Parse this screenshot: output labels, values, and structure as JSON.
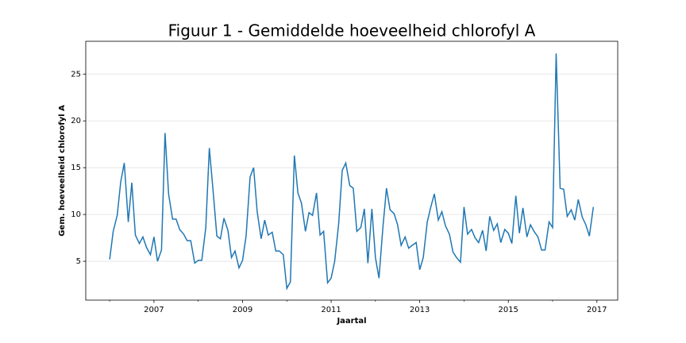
{
  "chart_data": {
    "type": "line",
    "title": "Figuur 1 - Gemiddelde hoeveelheid chlorofyl A",
    "xlabel": "Jaartal",
    "ylabel": "Gem. hoeveelheid chlorofyl A",
    "x": [
      2006.0,
      2006.08,
      2006.17,
      2006.25,
      2006.33,
      2006.42,
      2006.5,
      2006.58,
      2006.67,
      2006.75,
      2006.83,
      2006.92,
      2007.0,
      2007.08,
      2007.17,
      2007.25,
      2007.33,
      2007.42,
      2007.5,
      2007.58,
      2007.67,
      2007.75,
      2007.83,
      2007.92,
      2008.0,
      2008.08,
      2008.17,
      2008.25,
      2008.33,
      2008.42,
      2008.5,
      2008.58,
      2008.67,
      2008.75,
      2008.83,
      2008.92,
      2009.0,
      2009.08,
      2009.17,
      2009.25,
      2009.33,
      2009.42,
      2009.5,
      2009.58,
      2009.67,
      2009.75,
      2009.83,
      2009.92,
      2010.0,
      2010.08,
      2010.17,
      2010.25,
      2010.33,
      2010.42,
      2010.5,
      2010.58,
      2010.67,
      2010.75,
      2010.83,
      2010.92,
      2011.0,
      2011.08,
      2011.17,
      2011.25,
      2011.33,
      2011.42,
      2011.5,
      2011.58,
      2011.67,
      2011.75,
      2011.83,
      2011.92,
      2012.0,
      2012.08,
      2012.17,
      2012.25,
      2012.33,
      2012.42,
      2012.5,
      2012.58,
      2012.67,
      2012.75,
      2012.83,
      2012.92,
      2013.0,
      2013.08,
      2013.17,
      2013.25,
      2013.33,
      2013.42,
      2013.5,
      2013.58,
      2013.67,
      2013.75,
      2013.83,
      2013.92,
      2014.0,
      2014.08,
      2014.17,
      2014.25,
      2014.33,
      2014.42,
      2014.5,
      2014.58,
      2014.67,
      2014.75,
      2014.83,
      2014.92,
      2015.0,
      2015.08,
      2015.17,
      2015.25,
      2015.33,
      2015.42,
      2015.5,
      2015.58,
      2015.67,
      2015.75,
      2015.83,
      2015.92,
      2016.0,
      2016.08,
      2016.17,
      2016.25,
      2016.33,
      2016.42,
      2016.5,
      2016.58,
      2016.67,
      2016.75,
      2016.83,
      2016.92
    ],
    "series": [
      {
        "color": "#1f77b4",
        "values": [
          5.2,
          8.2,
          9.9,
          13.5,
          15.5,
          9.2,
          13.4,
          7.8,
          6.9,
          7.6,
          6.5,
          5.7,
          7.6,
          5.0,
          6.2,
          18.7,
          12.2,
          9.5,
          9.5,
          8.4,
          7.9,
          7.2,
          7.2,
          4.8,
          5.1,
          5.1,
          8.6,
          17.1,
          12.8,
          7.7,
          7.4,
          9.6,
          8.3,
          5.4,
          6.1,
          4.3,
          5.1,
          7.7,
          14.0,
          15.0,
          10.3,
          7.4,
          9.4,
          7.8,
          8.1,
          6.1,
          6.1,
          5.7,
          2.1,
          2.8,
          16.3,
          12.3,
          11.2,
          8.2,
          10.2,
          9.9,
          12.3,
          7.8,
          8.2,
          2.7,
          3.2,
          5.0,
          9.0,
          14.7,
          15.5,
          13.1,
          12.8,
          8.2,
          8.6,
          10.6,
          4.8,
          10.6,
          5.4,
          3.2,
          8.7,
          12.8,
          10.5,
          10.1,
          8.9,
          6.7,
          7.6,
          6.4,
          6.7,
          7.0,
          4.1,
          5.4,
          9.2,
          10.8,
          12.2,
          9.4,
          10.3,
          8.8,
          7.9,
          6.0,
          5.4,
          4.9,
          10.8,
          7.9,
          8.4,
          7.5,
          7.0,
          8.3,
          6.1,
          9.8,
          8.3,
          9.0,
          7.0,
          8.4,
          8.0,
          6.9,
          12.0,
          8.0,
          10.7,
          7.6,
          8.9,
          8.2,
          7.6,
          6.2,
          6.2,
          9.2,
          8.6,
          27.2,
          12.8,
          12.7,
          9.8,
          10.5,
          9.4,
          11.6,
          9.7,
          8.9,
          7.7,
          10.8
        ]
      }
    ],
    "xlim": [
      2005.46,
      2017.47
    ],
    "xticks": [
      2007,
      2009,
      2011,
      2013,
      2015,
      2017
    ],
    "xminorticks": [
      2006,
      2008,
      2010,
      2012,
      2014,
      2016
    ],
    "ylim": [
      0.85,
      28.5
    ],
    "yticks": [
      5,
      10,
      15,
      20,
      25
    ],
    "grid": true
  }
}
